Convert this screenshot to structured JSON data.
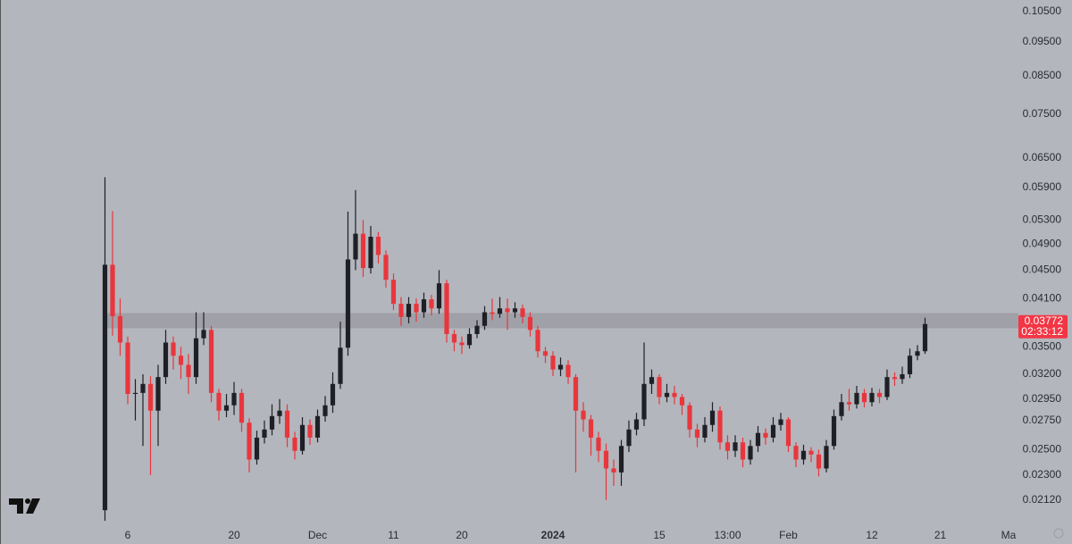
{
  "chart_data": {
    "type": "candlestick",
    "log_scale": true,
    "up_color": "#1f2026",
    "down_color": "#e8363c",
    "background": "#b4b6bd",
    "band_color": "#9c9ea5",
    "label_color": "#f23645",
    "ylim": [
      0.0194,
      0.109
    ],
    "yticks": [
      {
        "value": 0.105,
        "label": "0.10500"
      },
      {
        "value": 0.095,
        "label": "0.09500"
      },
      {
        "value": 0.085,
        "label": "0.08500"
      },
      {
        "value": 0.075,
        "label": "0.07500"
      },
      {
        "value": 0.065,
        "label": "0.06500"
      },
      {
        "value": 0.059,
        "label": "0.05900"
      },
      {
        "value": 0.053,
        "label": "0.05300"
      },
      {
        "value": 0.049,
        "label": "0.04900"
      },
      {
        "value": 0.045,
        "label": "0.04500"
      },
      {
        "value": 0.041,
        "label": "0.04100"
      },
      {
        "value": 0.035,
        "label": "0.03500"
      },
      {
        "value": 0.032,
        "label": "0.03200"
      },
      {
        "value": 0.0295,
        "label": "0.02950"
      },
      {
        "value": 0.0275,
        "label": "0.02750"
      },
      {
        "value": 0.025,
        "label": "0.02500"
      },
      {
        "value": 0.023,
        "label": "0.02300"
      },
      {
        "value": 0.0212,
        "label": "0.02120"
      }
    ],
    "highlight_band": [
      0.0372,
      0.0391
    ],
    "last_price": 0.03772,
    "countdown": "02:33:12",
    "categories": [
      null,
      null,
      null,
      "6",
      null,
      null,
      null,
      null,
      null,
      null,
      null,
      null,
      null,
      null,
      null,
      null,
      null,
      "20",
      null,
      null,
      null,
      null,
      null,
      null,
      null,
      null,
      null,
      null,
      "Dec",
      null,
      null,
      null,
      null,
      null,
      null,
      null,
      null,
      null,
      "11",
      null,
      null,
      null,
      null,
      null,
      null,
      null,
      null,
      "20",
      null,
      null,
      null,
      null,
      null,
      null,
      null,
      null,
      null,
      null,
      null,
      "2024",
      null,
      null,
      null,
      null,
      null,
      null,
      null,
      null,
      null,
      null,
      null,
      null,
      null,
      "15",
      null,
      null,
      null,
      null,
      null,
      null,
      null,
      null,
      "13:00",
      null,
      null,
      null,
      null,
      null,
      null,
      null,
      "Feb",
      null,
      null,
      null,
      null,
      null,
      null,
      null,
      null,
      null,
      null,
      "12",
      null,
      null,
      null,
      null,
      null,
      null,
      null,
      null,
      "21",
      null,
      null,
      null,
      null,
      null,
      null,
      null,
      null,
      "Ma"
    ],
    "open": [
      0.0205,
      0.0458,
      0.0387,
      0.0355,
      0.03,
      0.0301,
      0.031,
      0.0284,
      0.0317,
      0.0355,
      0.034,
      0.033,
      0.0317,
      0.036,
      0.037,
      0.0301,
      0.0284,
      0.0289,
      0.0301,
      0.0273,
      0.0242,
      0.026,
      0.0267,
      0.0279,
      0.0284,
      0.026,
      0.0249,
      0.0271,
      0.026,
      0.0279,
      0.0289,
      0.031,
      0.0349,
      0.0466,
      0.0507,
      0.0453,
      0.0502,
      0.0473,
      0.0436,
      0.0403,
      0.0386,
      0.0403,
      0.0392,
      0.0409,
      0.0397,
      0.0431,
      0.0365,
      0.0355,
      0.0352,
      0.0365,
      0.0375,
      0.0392,
      0.039,
      0.0397,
      0.0392,
      0.0397,
      0.0386,
      0.037,
      0.0345,
      0.034,
      0.0325,
      0.033,
      0.0317,
      0.0284,
      0.0276,
      0.026,
      0.0249,
      0.0235,
      0.0232,
      0.0253,
      0.0267,
      0.0276,
      0.031,
      0.0317,
      0.0297,
      0.0301,
      0.0297,
      0.0289,
      0.0267,
      0.026,
      0.0271,
      0.0284,
      0.0256,
      0.0249,
      0.0256,
      0.0242,
      0.0253,
      0.0264,
      0.026,
      0.0271,
      0.0276,
      0.0253,
      0.0242,
      0.0249,
      0.0246,
      0.0235,
      0.0253,
      0.0279,
      0.0292,
      0.029,
      0.0301,
      0.0292,
      0.0301,
      0.0297,
      0.0317,
      0.0315,
      0.032,
      0.034,
      0.0345,
      null,
      null,
      null,
      null,
      null,
      null,
      null,
      null,
      null,
      null,
      null
    ],
    "high": [
      0.061,
      0.0546,
      0.041,
      0.0362,
      0.0315,
      0.032,
      0.0318,
      0.033,
      0.037,
      0.0362,
      0.035,
      0.0342,
      0.0392,
      0.0392,
      0.0375,
      0.0305,
      0.03,
      0.0312,
      0.0305,
      0.0277,
      0.0266,
      0.0275,
      0.029,
      0.0295,
      0.029,
      0.0265,
      0.0278,
      0.0276,
      0.0285,
      0.0298,
      0.0322,
      0.038,
      0.0545,
      0.0585,
      0.053,
      0.052,
      0.051,
      0.048,
      0.0445,
      0.0412,
      0.0412,
      0.041,
      0.0418,
      0.0415,
      0.045,
      0.0436,
      0.037,
      0.0362,
      0.0372,
      0.0382,
      0.04,
      0.041,
      0.0412,
      0.041,
      0.0405,
      0.0402,
      0.0392,
      0.0375,
      0.035,
      0.0345,
      0.0338,
      0.0335,
      0.032,
      0.0292,
      0.028,
      0.0265,
      0.0255,
      0.0242,
      0.0258,
      0.0275,
      0.0282,
      0.0355,
      0.0325,
      0.032,
      0.031,
      0.0308,
      0.03,
      0.0292,
      0.0272,
      0.0278,
      0.0292,
      0.0288,
      0.0262,
      0.0262,
      0.026,
      0.0258,
      0.027,
      0.0268,
      0.0278,
      0.0282,
      0.0278,
      0.0256,
      0.0254,
      0.0252,
      0.025,
      0.0258,
      0.0285,
      0.03,
      0.0305,
      0.0308,
      0.0305,
      0.0306,
      0.0305,
      0.0325,
      0.0322,
      0.0328,
      0.0348,
      0.0352,
      0.0385,
      null,
      null,
      null,
      null,
      null,
      null,
      null,
      null,
      null,
      null,
      null
    ],
    "low": [
      0.0198,
      0.0363,
      0.034,
      0.029,
      0.0275,
      0.0253,
      0.023,
      0.0253,
      0.031,
      0.0325,
      0.0315,
      0.03,
      0.031,
      0.0352,
      0.0292,
      0.0275,
      0.0278,
      0.028,
      0.0265,
      0.0232,
      0.0238,
      0.0255,
      0.0262,
      0.0272,
      0.0252,
      0.0242,
      0.0246,
      0.0254,
      0.0256,
      0.0274,
      0.0282,
      0.0305,
      0.034,
      0.045,
      0.044,
      0.0445,
      0.046,
      0.0425,
      0.0395,
      0.0375,
      0.0378,
      0.038,
      0.0385,
      0.0388,
      0.039,
      0.0355,
      0.0345,
      0.0342,
      0.0348,
      0.036,
      0.037,
      0.0382,
      0.0385,
      0.037,
      0.0385,
      0.0378,
      0.0362,
      0.0338,
      0.0332,
      0.0318,
      0.0318,
      0.031,
      0.0232,
      0.0265,
      0.0245,
      0.024,
      0.0212,
      0.0222,
      0.0222,
      0.0248,
      0.0262,
      0.027,
      0.03,
      0.029,
      0.0292,
      0.029,
      0.028,
      0.026,
      0.0252,
      0.0256,
      0.0265,
      0.025,
      0.0242,
      0.0244,
      0.0236,
      0.0238,
      0.0248,
      0.0254,
      0.0256,
      0.0266,
      0.0248,
      0.0236,
      0.0238,
      0.024,
      0.0229,
      0.0232,
      0.025,
      0.0275,
      0.0284,
      0.0286,
      0.0287,
      0.0288,
      0.0291,
      0.0294,
      0.0308,
      0.031,
      0.0316,
      0.0335,
      0.0342,
      null,
      null,
      null,
      null,
      null,
      null,
      null,
      null,
      null,
      null,
      null
    ],
    "close": [
      0.0458,
      0.0387,
      0.0355,
      0.03,
      0.0301,
      0.031,
      0.0284,
      0.0317,
      0.0355,
      0.034,
      0.033,
      0.0317,
      0.036,
      0.037,
      0.0301,
      0.0284,
      0.0289,
      0.0301,
      0.0273,
      0.0242,
      0.026,
      0.0267,
      0.0279,
      0.0284,
      0.026,
      0.0249,
      0.0271,
      0.026,
      0.0279,
      0.0289,
      0.031,
      0.0349,
      0.0466,
      0.0507,
      0.0453,
      0.0502,
      0.0473,
      0.0436,
      0.0403,
      0.0386,
      0.0403,
      0.0392,
      0.0409,
      0.0397,
      0.0431,
      0.0365,
      0.0355,
      0.0352,
      0.0365,
      0.0375,
      0.0392,
      0.039,
      0.0397,
      0.0392,
      0.0397,
      0.0386,
      0.037,
      0.0345,
      0.034,
      0.0325,
      0.033,
      0.0317,
      0.0284,
      0.0276,
      0.026,
      0.0249,
      0.0235,
      0.0232,
      0.0253,
      0.0267,
      0.0276,
      0.031,
      0.0317,
      0.0297,
      0.0301,
      0.0297,
      0.0289,
      0.0267,
      0.026,
      0.0271,
      0.0284,
      0.0256,
      0.0249,
      0.0256,
      0.0242,
      0.0253,
      0.0264,
      0.026,
      0.0271,
      0.0276,
      0.0253,
      0.0242,
      0.0249,
      0.0246,
      0.0235,
      0.0253,
      0.0279,
      0.0292,
      0.029,
      0.0301,
      0.0292,
      0.0301,
      0.0297,
      0.0317,
      0.0315,
      0.032,
      0.034,
      0.0345,
      0.03772,
      null,
      null,
      null,
      null,
      null,
      null,
      null,
      null,
      null,
      null,
      null
    ]
  }
}
